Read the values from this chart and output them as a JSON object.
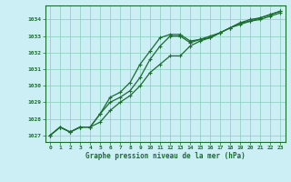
{
  "title": "Graphe pression niveau de la mer (hPa)",
  "background_color": "#cceef5",
  "grid_color": "#88ccbb",
  "line_color": "#1a6e2e",
  "x_ticks": [
    0,
    1,
    2,
    3,
    4,
    5,
    6,
    7,
    8,
    9,
    10,
    11,
    12,
    13,
    14,
    15,
    16,
    17,
    18,
    19,
    20,
    21,
    22,
    23
  ],
  "y_ticks": [
    1027,
    1028,
    1029,
    1030,
    1031,
    1032,
    1033,
    1034
  ],
  "ylim": [
    1026.6,
    1034.85
  ],
  "xlim": [
    -0.5,
    23.5
  ],
  "series1": [
    1027.0,
    1027.5,
    1027.2,
    1027.5,
    1027.5,
    1027.8,
    1028.5,
    1029.0,
    1029.4,
    1030.0,
    1030.8,
    1031.3,
    1031.8,
    1031.8,
    1032.4,
    1032.7,
    1032.9,
    1033.2,
    1033.5,
    1033.7,
    1033.9,
    1034.0,
    1034.2,
    1034.4
  ],
  "series2": [
    1027.0,
    1027.5,
    1027.2,
    1027.5,
    1027.5,
    1028.3,
    1029.3,
    1029.6,
    1030.2,
    1031.3,
    1032.1,
    1032.9,
    1033.1,
    1033.1,
    1032.7,
    1032.8,
    1033.0,
    1033.2,
    1033.5,
    1033.8,
    1034.0,
    1034.1,
    1034.3,
    1034.5
  ],
  "series3": [
    1027.0,
    1027.5,
    1027.2,
    1027.5,
    1027.5,
    1028.3,
    1029.0,
    1029.3,
    1029.7,
    1030.5,
    1031.6,
    1032.4,
    1033.0,
    1033.0,
    1032.6,
    1032.8,
    1032.9,
    1033.2,
    1033.5,
    1033.8,
    1033.9,
    1034.1,
    1034.3,
    1034.5
  ],
  "figsize": [
    3.2,
    2.0
  ],
  "dpi": 100,
  "tick_fontsize": 4.5,
  "label_fontsize": 5.5,
  "linewidth": 0.9,
  "markersize": 3.0
}
